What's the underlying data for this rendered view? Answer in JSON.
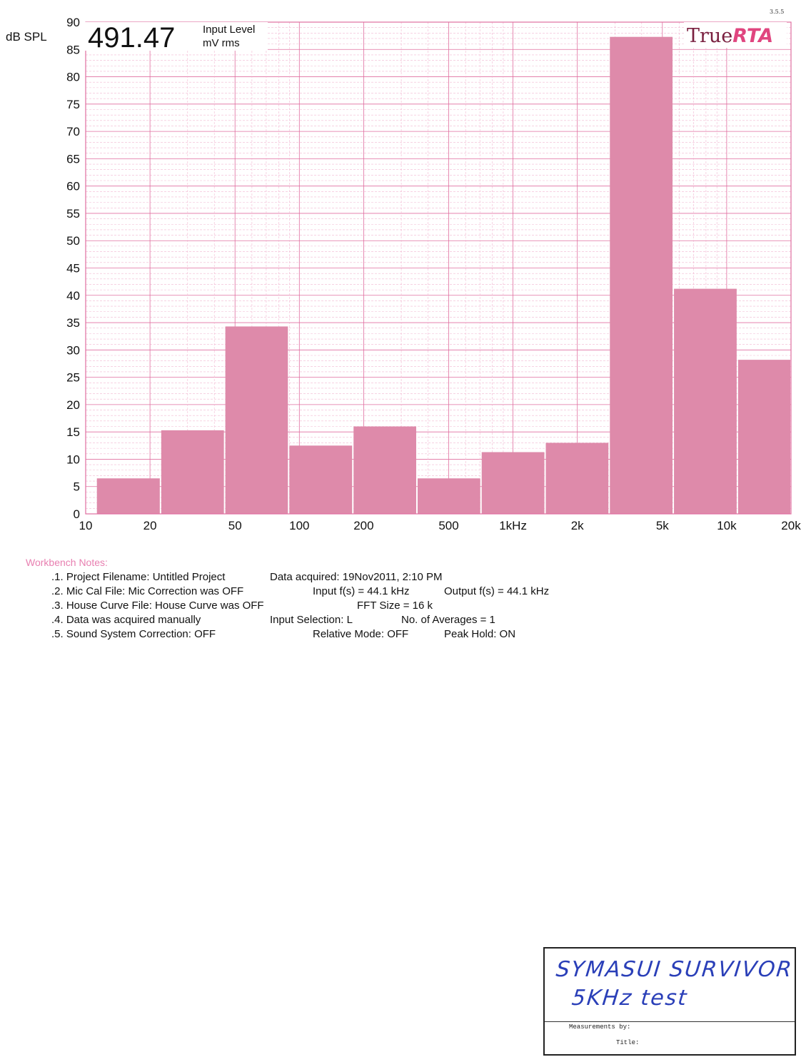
{
  "header": {
    "y_unit": "dB SPL",
    "input_level_value": "491.47",
    "input_level_label_1": "Input Level",
    "input_level_label_2": "mV rms",
    "brand_true": "True",
    "brand_rta": "RTA",
    "version": "3.5.5"
  },
  "colors": {
    "bar": "#de8aaa",
    "grid_major": "#e06fa0",
    "grid_minor": "#f2b8d2",
    "frame": "#e06fa0",
    "brand_rta": "#e0457f",
    "notes_heading": "#e87fb0"
  },
  "chart_data": {
    "type": "bar",
    "x_scale": "log",
    "xlim": [
      10,
      20000
    ],
    "ylim": [
      0,
      90
    ],
    "x_tick_labels": [
      {
        "value": 10,
        "label": "10"
      },
      {
        "value": 20,
        "label": "20"
      },
      {
        "value": 50,
        "label": "50"
      },
      {
        "value": 100,
        "label": "100"
      },
      {
        "value": 200,
        "label": "200"
      },
      {
        "value": 500,
        "label": "500"
      },
      {
        "value": 1000,
        "label": "1kHz"
      },
      {
        "value": 2000,
        "label": "2k"
      },
      {
        "value": 5000,
        "label": "5k"
      },
      {
        "value": 10000,
        "label": "10k"
      },
      {
        "value": 20000,
        "label": "20k"
      }
    ],
    "y_ticks": [
      0,
      5,
      10,
      15,
      20,
      25,
      30,
      35,
      40,
      45,
      50,
      55,
      60,
      65,
      70,
      75,
      80,
      85,
      90
    ],
    "bands": [
      {
        "from": 11.2,
        "to": 22.4,
        "value": 6.5
      },
      {
        "from": 22.4,
        "to": 44.7,
        "value": 15.3
      },
      {
        "from": 44.7,
        "to": 89.1,
        "value": 34.3
      },
      {
        "from": 89.1,
        "to": 178,
        "value": 12.5
      },
      {
        "from": 178,
        "to": 355,
        "value": 16.0
      },
      {
        "from": 355,
        "to": 708,
        "value": 6.5
      },
      {
        "from": 708,
        "to": 1413,
        "value": 11.3
      },
      {
        "from": 1413,
        "to": 2818,
        "value": 13.0
      },
      {
        "from": 2818,
        "to": 5623,
        "value": 87.3
      },
      {
        "from": 5623,
        "to": 11220,
        "value": 41.2
      },
      {
        "from": 11220,
        "to": 20000,
        "value": 28.2
      }
    ],
    "grid": true
  },
  "notes": {
    "heading": "Workbench Notes:",
    "project_filename": ".1. Project Filename: Untitled Project",
    "data_acquired": "Data acquired: 19Nov2011, 2:10 PM",
    "mic_cal": ".2. Mic Cal File: Mic Correction was OFF",
    "input_fs": "Input f(s) = 44.1 kHz",
    "output_fs": "Output f(s) = 44.1 kHz",
    "house_curve": ".3. House Curve File: House Curve was OFF",
    "fft_size": "FFT Size = 16 k",
    "acquired_manually": ".4. Data was acquired manually",
    "input_selection": "Input Selection: L",
    "averages": "No. of Averages = 1",
    "sound_system": ".5. Sound System Correction: OFF",
    "relative_mode": "Relative Mode:  OFF",
    "peak_hold": "Peak Hold: ON"
  },
  "stamp": {
    "handwritten_line_1": "SYMASUI SURVIVOR",
    "handwritten_line_2": "5KHz test",
    "measurements_by_label": "Measurements by:",
    "title_label": "Title:"
  }
}
